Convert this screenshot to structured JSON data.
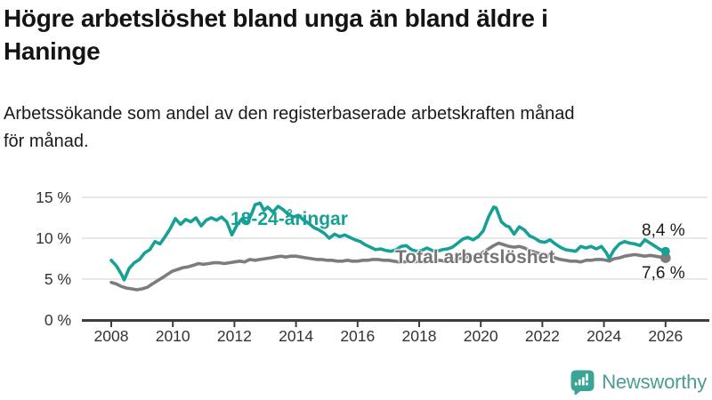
{
  "header": {
    "title_lines": [
      "Högre arbetslöshet bland unga än bland äldre i",
      "Haninge"
    ],
    "subtitle_lines": [
      "Arbetssökande som andel av den registerbaserade arbetskraften månad",
      "för månad."
    ]
  },
  "chart_data": {
    "type": "line",
    "title": "Högre arbetslöshet bland unga än bland äldre i Haninge",
    "subtitle": "Arbetssökande som andel av den registerbaserade arbetskraften månad för månad.",
    "grid": true,
    "legend_position": "inline-labels",
    "x_axis": {
      "unit": "year",
      "range": [
        2008,
        2026.1
      ],
      "ticks": [
        {
          "value": 2008,
          "label": "2008"
        },
        {
          "value": 2010,
          "label": "2010"
        },
        {
          "value": 2012,
          "label": "2012"
        },
        {
          "value": 2014,
          "label": "2014"
        },
        {
          "value": 2016,
          "label": "2016"
        },
        {
          "value": 2018,
          "label": "2018"
        },
        {
          "value": 2020,
          "label": "2020"
        },
        {
          "value": 2022,
          "label": "2022"
        },
        {
          "value": 2024,
          "label": "2024"
        },
        {
          "value": 2026,
          "label": "2026"
        }
      ]
    },
    "y_axis": {
      "unit": "percent",
      "range": [
        0,
        16
      ],
      "ticks": [
        {
          "value": 0,
          "label": "0 %"
        },
        {
          "value": 5,
          "label": "5 %"
        },
        {
          "value": 10,
          "label": "10 %"
        },
        {
          "value": 15,
          "label": "15 %"
        }
      ]
    },
    "series": [
      {
        "name": "18-24-åringar",
        "color": "#17a095",
        "end_label": "8,4 %",
        "end_value": 8.4,
        "points": [
          [
            2008.0,
            7.3
          ],
          [
            2008.17,
            6.6
          ],
          [
            2008.33,
            5.6
          ],
          [
            2008.42,
            4.9
          ],
          [
            2008.58,
            6.3
          ],
          [
            2008.75,
            7.0
          ],
          [
            2008.92,
            7.4
          ],
          [
            2009.08,
            8.2
          ],
          [
            2009.25,
            8.6
          ],
          [
            2009.42,
            9.6
          ],
          [
            2009.58,
            9.3
          ],
          [
            2009.75,
            10.2
          ],
          [
            2009.92,
            11.2
          ],
          [
            2010.08,
            12.4
          ],
          [
            2010.25,
            11.7
          ],
          [
            2010.42,
            12.3
          ],
          [
            2010.58,
            12.0
          ],
          [
            2010.75,
            12.5
          ],
          [
            2010.92,
            11.5
          ],
          [
            2011.08,
            12.2
          ],
          [
            2011.25,
            12.5
          ],
          [
            2011.42,
            12.2
          ],
          [
            2011.58,
            12.6
          ],
          [
            2011.75,
            12.0
          ],
          [
            2011.92,
            10.4
          ],
          [
            2012.08,
            11.6
          ],
          [
            2012.25,
            12.4
          ],
          [
            2012.42,
            11.8
          ],
          [
            2012.58,
            13.2
          ],
          [
            2012.67,
            14.1
          ],
          [
            2012.83,
            14.3
          ],
          [
            2012.96,
            13.4
          ],
          [
            2013.08,
            13.8
          ],
          [
            2013.25,
            13.2
          ],
          [
            2013.42,
            13.9
          ],
          [
            2013.58,
            13.5
          ],
          [
            2013.75,
            12.9
          ],
          [
            2013.92,
            12.6
          ],
          [
            2014.08,
            12.8
          ],
          [
            2014.25,
            12.2
          ],
          [
            2014.42,
            11.8
          ],
          [
            2014.58,
            11.3
          ],
          [
            2014.75,
            11.0
          ],
          [
            2014.92,
            10.6
          ],
          [
            2015.08,
            10.0
          ],
          [
            2015.25,
            10.5
          ],
          [
            2015.42,
            10.2
          ],
          [
            2015.58,
            10.4
          ],
          [
            2015.75,
            10.1
          ],
          [
            2015.92,
            9.8
          ],
          [
            2016.08,
            9.6
          ],
          [
            2016.25,
            9.2
          ],
          [
            2016.42,
            8.9
          ],
          [
            2016.58,
            8.6
          ],
          [
            2016.75,
            8.7
          ],
          [
            2016.92,
            8.5
          ],
          [
            2017.08,
            8.4
          ],
          [
            2017.25,
            8.6
          ],
          [
            2017.42,
            9.0
          ],
          [
            2017.58,
            9.1
          ],
          [
            2017.75,
            8.6
          ],
          [
            2017.92,
            8.4
          ],
          [
            2018.08,
            8.5
          ],
          [
            2018.25,
            8.8
          ],
          [
            2018.42,
            8.5
          ],
          [
            2018.58,
            8.4
          ],
          [
            2018.75,
            8.6
          ],
          [
            2018.92,
            8.7
          ],
          [
            2019.08,
            8.9
          ],
          [
            2019.25,
            9.4
          ],
          [
            2019.42,
            9.9
          ],
          [
            2019.58,
            10.1
          ],
          [
            2019.75,
            9.8
          ],
          [
            2019.92,
            10.2
          ],
          [
            2020.08,
            10.9
          ],
          [
            2020.25,
            12.6
          ],
          [
            2020.42,
            13.8
          ],
          [
            2020.5,
            13.7
          ],
          [
            2020.67,
            12.0
          ],
          [
            2020.83,
            11.5
          ],
          [
            2020.92,
            11.4
          ],
          [
            2021.08,
            10.5
          ],
          [
            2021.25,
            11.4
          ],
          [
            2021.42,
            11.0
          ],
          [
            2021.58,
            10.3
          ],
          [
            2021.75,
            10.0
          ],
          [
            2021.92,
            9.6
          ],
          [
            2022.08,
            9.5
          ],
          [
            2022.25,
            9.8
          ],
          [
            2022.42,
            9.3
          ],
          [
            2022.58,
            8.9
          ],
          [
            2022.75,
            8.6
          ],
          [
            2022.92,
            8.5
          ],
          [
            2023.08,
            8.4
          ],
          [
            2023.25,
            9.0
          ],
          [
            2023.42,
            8.8
          ],
          [
            2023.58,
            9.0
          ],
          [
            2023.75,
            8.7
          ],
          [
            2023.92,
            9.0
          ],
          [
            2024.08,
            8.2
          ],
          [
            2024.17,
            7.5
          ],
          [
            2024.33,
            8.6
          ],
          [
            2024.5,
            9.3
          ],
          [
            2024.67,
            9.6
          ],
          [
            2024.83,
            9.4
          ],
          [
            2025.0,
            9.3
          ],
          [
            2025.17,
            9.1
          ],
          [
            2025.33,
            9.8
          ],
          [
            2025.5,
            9.4
          ],
          [
            2025.67,
            9.0
          ],
          [
            2025.83,
            8.6
          ],
          [
            2026.0,
            8.4
          ]
        ]
      },
      {
        "name": "Total arbetslöshet",
        "color": "#7c7c7c",
        "end_label": "7,6 %",
        "end_value": 7.6,
        "points": [
          [
            2008.0,
            4.6
          ],
          [
            2008.17,
            4.4
          ],
          [
            2008.33,
            4.1
          ],
          [
            2008.5,
            3.9
          ],
          [
            2008.67,
            3.8
          ],
          [
            2008.83,
            3.7
          ],
          [
            2009.0,
            3.8
          ],
          [
            2009.17,
            4.0
          ],
          [
            2009.33,
            4.4
          ],
          [
            2009.5,
            4.8
          ],
          [
            2009.67,
            5.2
          ],
          [
            2009.83,
            5.6
          ],
          [
            2010.0,
            6.0
          ],
          [
            2010.17,
            6.2
          ],
          [
            2010.33,
            6.4
          ],
          [
            2010.5,
            6.5
          ],
          [
            2010.67,
            6.7
          ],
          [
            2010.83,
            6.9
          ],
          [
            2011.0,
            6.8
          ],
          [
            2011.17,
            6.9
          ],
          [
            2011.33,
            7.0
          ],
          [
            2011.5,
            7.0
          ],
          [
            2011.67,
            6.9
          ],
          [
            2011.83,
            7.0
          ],
          [
            2012.0,
            7.1
          ],
          [
            2012.17,
            7.2
          ],
          [
            2012.33,
            7.1
          ],
          [
            2012.5,
            7.4
          ],
          [
            2012.67,
            7.3
          ],
          [
            2012.83,
            7.4
          ],
          [
            2013.0,
            7.5
          ],
          [
            2013.17,
            7.6
          ],
          [
            2013.33,
            7.7
          ],
          [
            2013.5,
            7.8
          ],
          [
            2013.67,
            7.7
          ],
          [
            2013.83,
            7.8
          ],
          [
            2014.0,
            7.8
          ],
          [
            2014.17,
            7.7
          ],
          [
            2014.33,
            7.6
          ],
          [
            2014.5,
            7.5
          ],
          [
            2014.67,
            7.4
          ],
          [
            2014.83,
            7.4
          ],
          [
            2015.0,
            7.3
          ],
          [
            2015.17,
            7.3
          ],
          [
            2015.33,
            7.2
          ],
          [
            2015.5,
            7.2
          ],
          [
            2015.67,
            7.3
          ],
          [
            2015.83,
            7.2
          ],
          [
            2016.0,
            7.2
          ],
          [
            2016.17,
            7.3
          ],
          [
            2016.33,
            7.3
          ],
          [
            2016.5,
            7.4
          ],
          [
            2016.67,
            7.4
          ],
          [
            2016.83,
            7.3
          ],
          [
            2017.0,
            7.3
          ],
          [
            2017.17,
            7.2
          ],
          [
            2017.33,
            7.1
          ],
          [
            2017.5,
            7.1
          ],
          [
            2017.67,
            7.2
          ],
          [
            2017.83,
            7.1
          ],
          [
            2018.0,
            7.2
          ],
          [
            2018.17,
            7.1
          ],
          [
            2018.33,
            7.2
          ],
          [
            2018.5,
            7.2
          ],
          [
            2018.67,
            7.3
          ],
          [
            2018.83,
            7.2
          ],
          [
            2019.0,
            7.3
          ],
          [
            2019.17,
            7.4
          ],
          [
            2019.42,
            7.6
          ],
          [
            2019.67,
            7.7
          ],
          [
            2019.92,
            7.9
          ],
          [
            2020.17,
            8.5
          ],
          [
            2020.42,
            9.1
          ],
          [
            2020.58,
            9.4
          ],
          [
            2020.75,
            9.2
          ],
          [
            2020.92,
            9.0
          ],
          [
            2021.08,
            8.9
          ],
          [
            2021.25,
            9.0
          ],
          [
            2021.42,
            8.8
          ],
          [
            2021.58,
            8.5
          ],
          [
            2021.75,
            8.3
          ],
          [
            2021.92,
            8.1
          ],
          [
            2022.08,
            7.9
          ],
          [
            2022.25,
            7.8
          ],
          [
            2022.42,
            7.6
          ],
          [
            2022.58,
            7.4
          ],
          [
            2022.75,
            7.3
          ],
          [
            2022.92,
            7.2
          ],
          [
            2023.08,
            7.2
          ],
          [
            2023.25,
            7.1
          ],
          [
            2023.42,
            7.3
          ],
          [
            2023.58,
            7.3
          ],
          [
            2023.75,
            7.4
          ],
          [
            2023.92,
            7.4
          ],
          [
            2024.08,
            7.3
          ],
          [
            2024.17,
            7.2
          ],
          [
            2024.33,
            7.5
          ],
          [
            2024.5,
            7.6
          ],
          [
            2024.67,
            7.8
          ],
          [
            2024.83,
            7.9
          ],
          [
            2025.0,
            8.0
          ],
          [
            2025.17,
            7.9
          ],
          [
            2025.33,
            7.8
          ],
          [
            2025.5,
            7.9
          ],
          [
            2025.67,
            7.8
          ],
          [
            2025.83,
            7.7
          ],
          [
            2026.0,
            7.6
          ]
        ]
      }
    ]
  },
  "footer": {
    "brand": "Newsworthy",
    "brand_color": "#4d9c94",
    "logo_icon": "bar-chart-speech-bubble-icon"
  }
}
